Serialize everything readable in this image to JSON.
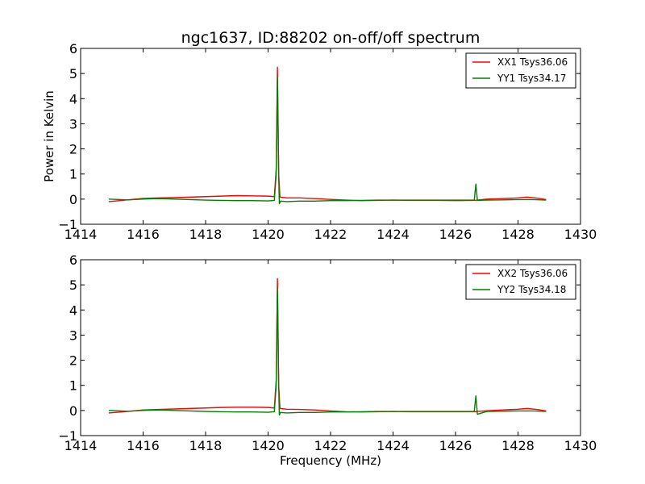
{
  "figure": {
    "title": "ngc1637, ID:88202 on-off/off spectrum",
    "ylabel": "Power in Kelvin",
    "xlabel": "Frequency (MHz)"
  },
  "chart_data": [
    {
      "type": "line",
      "title": "ngc1637, ID:88202 on-off/off spectrum",
      "xlabel": "",
      "ylabel": "Power in Kelvin",
      "xlim": [
        1414,
        1430
      ],
      "ylim": [
        -1,
        6
      ],
      "xticks": [
        1414,
        1416,
        1418,
        1420,
        1422,
        1424,
        1426,
        1428,
        1430
      ],
      "yticks": [
        -1,
        0,
        1,
        2,
        3,
        4,
        5,
        6
      ],
      "grid": false,
      "legend_position": "top-right",
      "series": [
        {
          "name": "XX1 Tsys36.06",
          "color": "#ff0000",
          "points": [
            [
              1414.9,
              -0.1
            ],
            [
              1415.5,
              -0.03
            ],
            [
              1416.0,
              0.03
            ],
            [
              1416.5,
              0.05
            ],
            [
              1417.0,
              0.06
            ],
            [
              1417.5,
              0.08
            ],
            [
              1418.0,
              0.1
            ],
            [
              1418.5,
              0.12
            ],
            [
              1419.0,
              0.14
            ],
            [
              1419.5,
              0.13
            ],
            [
              1420.0,
              0.12
            ],
            [
              1420.2,
              0.1
            ],
            [
              1420.26,
              1.2
            ],
            [
              1420.3,
              5.25
            ],
            [
              1420.34,
              1.0
            ],
            [
              1420.38,
              0.08
            ],
            [
              1420.6,
              0.05
            ],
            [
              1421.0,
              0.05
            ],
            [
              1421.5,
              0.02
            ],
            [
              1422.0,
              -0.01
            ],
            [
              1422.5,
              -0.04
            ],
            [
              1423.0,
              -0.06
            ],
            [
              1423.5,
              -0.05
            ],
            [
              1424.0,
              -0.04
            ],
            [
              1424.5,
              -0.05
            ],
            [
              1425.0,
              -0.05
            ],
            [
              1425.5,
              -0.05
            ],
            [
              1426.0,
              -0.06
            ],
            [
              1426.6,
              -0.05
            ],
            [
              1427.0,
              0.0
            ],
            [
              1427.5,
              0.02
            ],
            [
              1428.0,
              0.05
            ],
            [
              1428.3,
              0.08
            ],
            [
              1428.6,
              0.04
            ],
            [
              1428.9,
              -0.02
            ]
          ]
        },
        {
          "name": "YY1 Tsys34.17",
          "color": "#008000",
          "points": [
            [
              1414.9,
              0.0
            ],
            [
              1415.5,
              -0.03
            ],
            [
              1416.0,
              0.0
            ],
            [
              1416.5,
              0.02
            ],
            [
              1417.0,
              0.0
            ],
            [
              1417.5,
              -0.02
            ],
            [
              1418.0,
              -0.04
            ],
            [
              1418.5,
              -0.05
            ],
            [
              1419.0,
              -0.06
            ],
            [
              1419.5,
              -0.06
            ],
            [
              1420.0,
              -0.07
            ],
            [
              1420.2,
              -0.05
            ],
            [
              1420.26,
              1.0
            ],
            [
              1420.3,
              4.85
            ],
            [
              1420.34,
              0.9
            ],
            [
              1420.36,
              -0.18
            ],
            [
              1420.4,
              -0.08
            ],
            [
              1420.6,
              -0.1
            ],
            [
              1421.0,
              -0.08
            ],
            [
              1421.5,
              -0.08
            ],
            [
              1422.0,
              -0.06
            ],
            [
              1422.5,
              -0.06
            ],
            [
              1423.0,
              -0.05
            ],
            [
              1423.5,
              -0.04
            ],
            [
              1424.0,
              -0.04
            ],
            [
              1424.5,
              -0.04
            ],
            [
              1425.0,
              -0.04
            ],
            [
              1425.5,
              -0.04
            ],
            [
              1426.0,
              -0.04
            ],
            [
              1426.6,
              -0.04
            ],
            [
              1426.65,
              0.6
            ],
            [
              1426.7,
              -0.05
            ],
            [
              1427.0,
              -0.04
            ],
            [
              1427.5,
              -0.03
            ],
            [
              1428.0,
              -0.02
            ],
            [
              1428.5,
              -0.02
            ],
            [
              1428.9,
              -0.04
            ]
          ]
        }
      ]
    },
    {
      "type": "line",
      "title": "",
      "xlabel": "Frequency (MHz)",
      "ylabel": "",
      "xlim": [
        1414,
        1430
      ],
      "ylim": [
        -1,
        6
      ],
      "xticks": [
        1414,
        1416,
        1418,
        1420,
        1422,
        1424,
        1426,
        1428,
        1430
      ],
      "yticks": [
        -1,
        0,
        1,
        2,
        3,
        4,
        5,
        6
      ],
      "grid": false,
      "legend_position": "top-right",
      "series": [
        {
          "name": "XX2 Tsys36.06",
          "color": "#ff0000",
          "points": [
            [
              1414.9,
              -0.1
            ],
            [
              1415.5,
              -0.04
            ],
            [
              1416.0,
              0.02
            ],
            [
              1416.5,
              0.04
            ],
            [
              1417.0,
              0.06
            ],
            [
              1417.5,
              0.08
            ],
            [
              1418.0,
              0.1
            ],
            [
              1418.5,
              0.12
            ],
            [
              1419.0,
              0.13
            ],
            [
              1419.5,
              0.13
            ],
            [
              1420.0,
              0.12
            ],
            [
              1420.2,
              0.1
            ],
            [
              1420.26,
              1.2
            ],
            [
              1420.3,
              5.25
            ],
            [
              1420.34,
              1.0
            ],
            [
              1420.38,
              0.08
            ],
            [
              1420.6,
              0.05
            ],
            [
              1421.0,
              0.04
            ],
            [
              1421.5,
              0.02
            ],
            [
              1422.0,
              -0.02
            ],
            [
              1422.5,
              -0.05
            ],
            [
              1423.0,
              -0.06
            ],
            [
              1423.5,
              -0.05
            ],
            [
              1424.0,
              -0.04
            ],
            [
              1424.5,
              -0.05
            ],
            [
              1425.0,
              -0.05
            ],
            [
              1425.5,
              -0.05
            ],
            [
              1426.0,
              -0.05
            ],
            [
              1426.6,
              -0.05
            ],
            [
              1427.0,
              -0.01
            ],
            [
              1427.5,
              0.02
            ],
            [
              1428.0,
              0.05
            ],
            [
              1428.3,
              0.08
            ],
            [
              1428.6,
              0.04
            ],
            [
              1428.9,
              -0.02
            ]
          ]
        },
        {
          "name": "YY2 Tsys34.18",
          "color": "#008000",
          "points": [
            [
              1414.9,
              0.0
            ],
            [
              1415.5,
              -0.03
            ],
            [
              1416.0,
              0.0
            ],
            [
              1416.5,
              0.02
            ],
            [
              1417.0,
              0.0
            ],
            [
              1417.5,
              -0.02
            ],
            [
              1418.0,
              -0.04
            ],
            [
              1418.5,
              -0.05
            ],
            [
              1419.0,
              -0.06
            ],
            [
              1419.5,
              -0.06
            ],
            [
              1420.0,
              -0.07
            ],
            [
              1420.2,
              -0.05
            ],
            [
              1420.26,
              1.0
            ],
            [
              1420.3,
              4.85
            ],
            [
              1420.34,
              0.9
            ],
            [
              1420.36,
              -0.18
            ],
            [
              1420.4,
              -0.08
            ],
            [
              1420.6,
              -0.1
            ],
            [
              1421.0,
              -0.08
            ],
            [
              1421.5,
              -0.08
            ],
            [
              1422.0,
              -0.06
            ],
            [
              1422.5,
              -0.06
            ],
            [
              1423.0,
              -0.05
            ],
            [
              1423.5,
              -0.04
            ],
            [
              1424.0,
              -0.04
            ],
            [
              1424.5,
              -0.04
            ],
            [
              1425.0,
              -0.04
            ],
            [
              1425.5,
              -0.04
            ],
            [
              1426.0,
              -0.04
            ],
            [
              1426.6,
              -0.04
            ],
            [
              1426.65,
              0.58
            ],
            [
              1426.7,
              -0.15
            ],
            [
              1427.0,
              -0.04
            ],
            [
              1427.5,
              -0.03
            ],
            [
              1428.0,
              -0.02
            ],
            [
              1428.5,
              -0.02
            ],
            [
              1428.9,
              -0.04
            ]
          ]
        }
      ]
    }
  ]
}
